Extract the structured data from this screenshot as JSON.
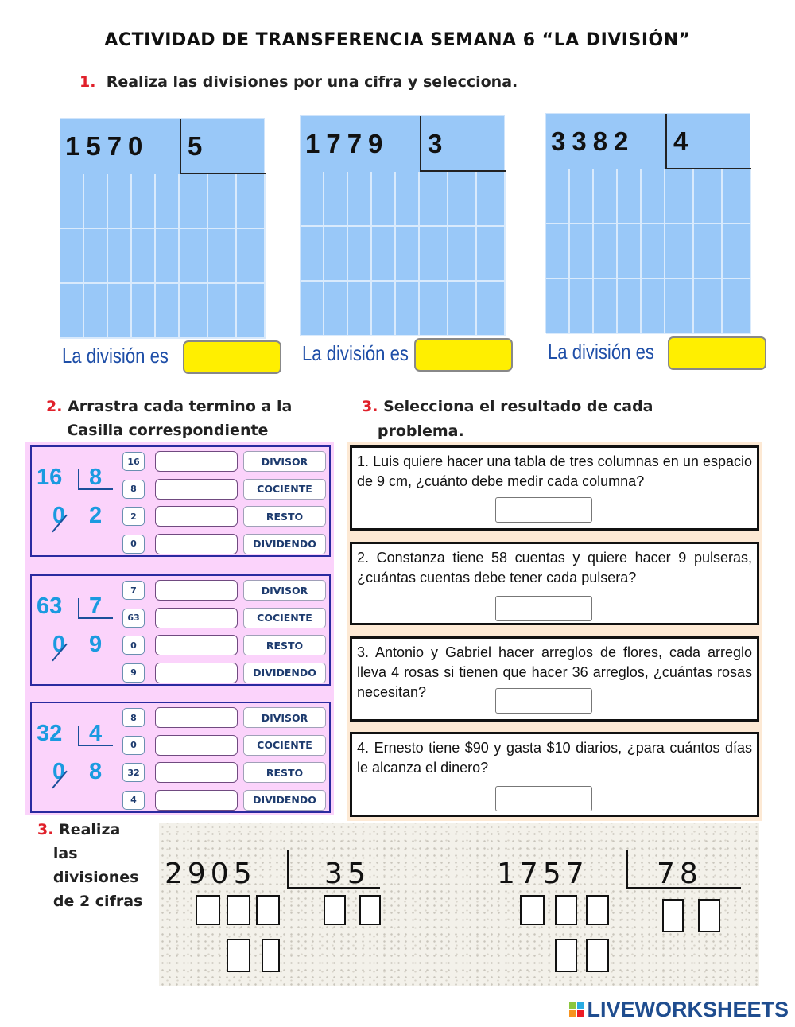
{
  "title": "ACTIVIDAD DE TRANSFERENCIA SEMANA 6 “LA DIVISIÓN”",
  "section1": {
    "number": "1.",
    "heading": "Realiza las divisiones por una cifra y selecciona.",
    "result_label": "La división es",
    "divisions": [
      {
        "dividend": "1570",
        "divisor": "5"
      },
      {
        "dividend": "1779",
        "divisor": "3"
      },
      {
        "dividend": "3382",
        "divisor": "4"
      }
    ]
  },
  "section2": {
    "number": "2.",
    "heading_line1": "Arrastra cada termino a la",
    "heading_line2": "Casilla correspondiente",
    "terms": [
      "DIVISOR",
      "COCIENTE",
      "RESTO",
      "DIVIDENDO"
    ],
    "problems": [
      {
        "dividend": "16",
        "divisor": "8",
        "remainder": "0",
        "quotient": "2",
        "values": [
          "16",
          "8",
          "2",
          "0"
        ]
      },
      {
        "dividend": "63",
        "divisor": "7",
        "remainder": "0",
        "quotient": "9",
        "values": [
          "7",
          "63",
          "0",
          "9"
        ]
      },
      {
        "dividend": "32",
        "divisor": "4",
        "remainder": "0",
        "quotient": "8",
        "values": [
          "8",
          "0",
          "32",
          "4"
        ]
      }
    ]
  },
  "section3": {
    "number": "3.",
    "heading_line1": "Selecciona el resultado de cada",
    "heading_line2": "problema.",
    "questions": [
      "1. Luis quiere hacer una tabla de tres columnas en un espacio de 9 cm, ¿cuánto debe medir cada columna?",
      "2. Constanza tiene 58 cuentas y quiere hacer 9 pulseras, ¿cuántas cuentas debe tener cada pulsera?",
      "3. Antonio y Gabriel hacer arreglos de flores, cada arreglo lleva 4 rosas si tienen que hacer 36 arreglos, ¿cuántas rosas necesitan?",
      "4. Ernesto tiene $90 y gasta $10 diarios, ¿para cuántos días le alcanza el dinero?"
    ]
  },
  "section4": {
    "number": "3.",
    "heading_lines": [
      "Realiza",
      "las",
      "divisiones",
      "de 2 cifras"
    ],
    "divisions": [
      {
        "dividend": "2905",
        "divisor": "35"
      },
      {
        "dividend": "1757",
        "divisor": "78"
      }
    ]
  },
  "logo": {
    "text": "LIVEWORKSHEETS"
  },
  "colors": {
    "grid": "#99c8f8",
    "answer_box": "#ffef00",
    "pink_panel": "#fbd3fb",
    "accent_red": "#e0202a",
    "number_blue": "#1a9ae0"
  }
}
